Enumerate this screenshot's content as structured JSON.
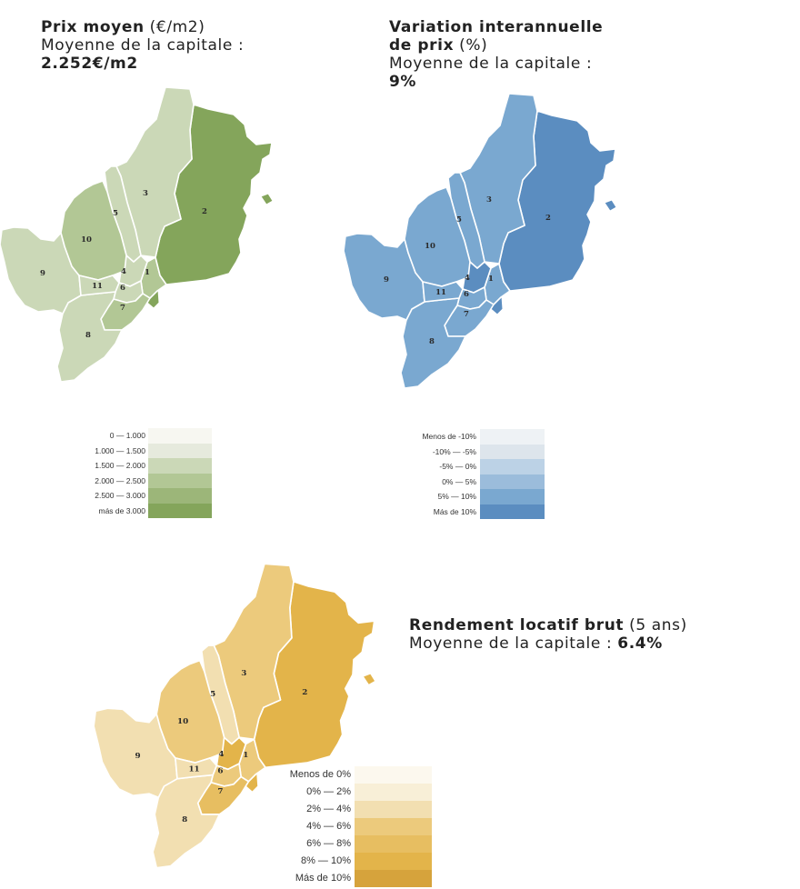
{
  "panels": {
    "price": {
      "title_bold": "Prix moyen",
      "title_rest": " (€/m2)",
      "line2": "Moyenne de la capitale :",
      "value": "2.252€/m2",
      "legend": [
        {
          "label_from": "0",
          "label_to": "1.000",
          "color": "#f7f7f1"
        },
        {
          "label_from": "1.000",
          "label_to": "1.500",
          "color": "#e6eadd"
        },
        {
          "label_from": "1.500",
          "label_to": "2.000",
          "color": "#cbd8b7"
        },
        {
          "label_from": "2.000",
          "label_to": "2.500",
          "color": "#b2c795"
        },
        {
          "label_from": "2.500",
          "label_to": "3.000",
          "color": "#9cb679"
        },
        {
          "label_single": "más de 3.000",
          "color": "#84a55b"
        }
      ]
    },
    "variation": {
      "title_bold_1": "Variation interannuelle",
      "title_bold_2": "de prix",
      "title_rest": " (%)",
      "line3": "Moyenne de la capitale :",
      "value": "9%",
      "legend": [
        {
          "label_single": "Menos de -10%",
          "color": "#eef2f5"
        },
        {
          "label_from": "-10%",
          "label_to": "-5%",
          "color": "#dde5ec"
        },
        {
          "label_from": "-5%",
          "label_to": "0%",
          "color": "#bcd2e6"
        },
        {
          "label_from": "0%",
          "label_to": "5%",
          "color": "#9bbcdb"
        },
        {
          "label_from": "5%",
          "label_to": "10%",
          "color": "#7aa8d0"
        },
        {
          "label_single": "Más de 10%",
          "color": "#5b8dc0"
        }
      ]
    },
    "yield": {
      "title_bold": "Rendement locatif brut",
      "title_rest": " (5 ans)",
      "line2": "Moyenne de la capitale :",
      "value": "6.4%",
      "legend": [
        {
          "label_single": "Menos de 0%",
          "color": "#fcf8ee"
        },
        {
          "label_from": "0%",
          "label_to": "2%",
          "color": "#f8efd7"
        },
        {
          "label_from": "2%",
          "label_to": "4%",
          "color": "#f2dfb1"
        },
        {
          "label_from": "4%",
          "label_to": "6%",
          "color": "#ecca7c"
        },
        {
          "label_from": "6%",
          "label_to": "8%",
          "color": "#e7be61"
        },
        {
          "label_from": "8%",
          "label_to": "10%",
          "color": "#e3b44a"
        },
        {
          "label_single": "Más de 10%",
          "color": "#d6a33c"
        }
      ]
    }
  },
  "districts": [
    {
      "id": "1",
      "label": "1"
    },
    {
      "id": "2",
      "label": "2"
    },
    {
      "id": "3",
      "label": "3"
    },
    {
      "id": "4",
      "label": "4"
    },
    {
      "id": "5",
      "label": "5"
    },
    {
      "id": "6",
      "label": "6"
    },
    {
      "id": "7",
      "label": "7"
    },
    {
      "id": "8",
      "label": "8"
    },
    {
      "id": "9",
      "label": "9"
    },
    {
      "id": "10",
      "label": "10"
    },
    {
      "id": "11",
      "label": "11"
    }
  ],
  "map_fills": {
    "price": {
      "1": "#b2c795",
      "2": "#84a55b",
      "3": "#cbd8b7",
      "4": "#cbd8b7",
      "5": "#cbd8b7",
      "6": "#cbd8b7",
      "7": "#b2c795",
      "8": "#cbd8b7",
      "9": "#cbd8b7",
      "10": "#b2c795",
      "11": "#cbd8b7"
    },
    "variation": {
      "1": "#7aa8d0",
      "2": "#5b8dc0",
      "3": "#7aa8d0",
      "4": "#5b8dc0",
      "5": "#7aa8d0",
      "6": "#7aa8d0",
      "7": "#7aa8d0",
      "8": "#7aa8d0",
      "9": "#7aa8d0",
      "10": "#7aa8d0",
      "11": "#7aa8d0"
    },
    "yield": {
      "1": "#ecca7c",
      "2": "#e3b44a",
      "3": "#ecca7c",
      "4": "#e3b44a",
      "5": "#f2dfb1",
      "6": "#ecca7c",
      "7": "#e7be61",
      "8": "#f2dfb1",
      "9": "#f2dfb1",
      "10": "#ecca7c",
      "11": "#f2dfb1"
    }
  },
  "legend_dash": "—"
}
